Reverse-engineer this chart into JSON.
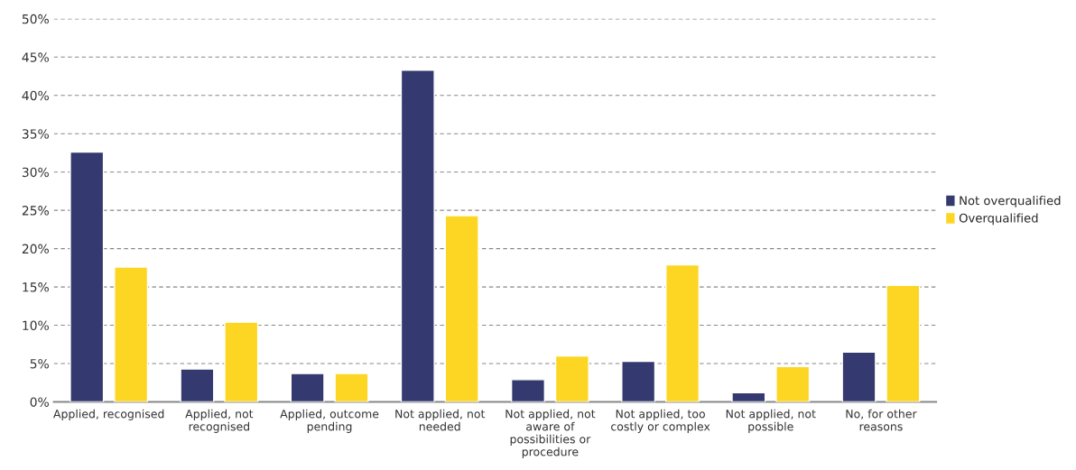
{
  "chart_data": {
    "type": "bar",
    "categories": [
      "Applied, recognised",
      "Applied, not\nrecognised",
      "Applied, outcome\npending",
      "Not applied, not\nneeded",
      "Not applied, not\naware of\npossibilities or\nprocedure",
      "Not applied, too\ncostly or complex",
      "Not applied, not\npossible",
      "No, for other\nreasons"
    ],
    "series": [
      {
        "name": "Not overqualified",
        "color": "#343a6f",
        "values": [
          32.6,
          4.3,
          3.7,
          43.3,
          2.9,
          5.3,
          1.2,
          6.5
        ]
      },
      {
        "name": "Overqualified",
        "color": "#fdd623",
        "values": [
          17.6,
          10.4,
          3.7,
          24.3,
          6.0,
          17.9,
          4.6,
          15.2
        ]
      }
    ],
    "ylim": [
      0,
      50
    ],
    "yticks": [
      {
        "value": 0,
        "label": "0%"
      },
      {
        "value": 5,
        "label": "5%"
      },
      {
        "value": 10,
        "label": "10%"
      },
      {
        "value": 15,
        "label": "15%"
      },
      {
        "value": 20,
        "label": "20%"
      },
      {
        "value": 25,
        "label": "25%"
      },
      {
        "value": 30,
        "label": "30%"
      },
      {
        "value": 35,
        "label": "35%"
      },
      {
        "value": 40,
        "label": "40%"
      },
      {
        "value": 45,
        "label": "45%"
      },
      {
        "value": 50,
        "label": "50%"
      }
    ],
    "grid": "y",
    "legend": "right"
  }
}
